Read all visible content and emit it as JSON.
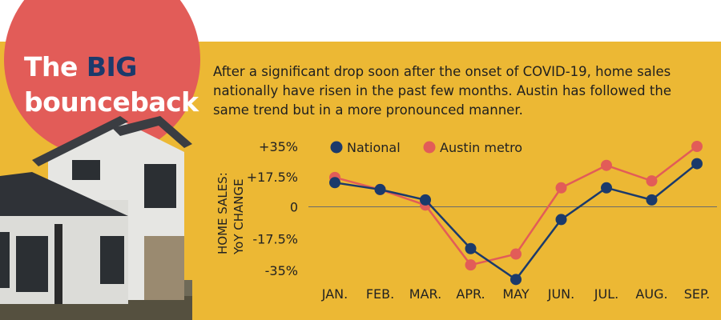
{
  "header": {
    "title_part1": "The ",
    "title_big": "BIG",
    "title_part2": "bounceback",
    "intro": "After a significant drop soon after the onset of COVID-19, home sales nationally have risen in the past few months. Austin has followed the same trend but in a more pronounced manner."
  },
  "colors": {
    "background": "#ecb834",
    "circle": "#e25c58",
    "national": "#1b3a6b",
    "austin": "#e25c58"
  },
  "chart_data": {
    "type": "line",
    "categories": [
      "JAN.",
      "FEB.",
      "MAR.",
      "APR.",
      "MAY",
      "JUN.",
      "JUL.",
      "AUG.",
      "SEP."
    ],
    "series": [
      {
        "name": "National",
        "values": [
          14,
          10,
          4,
          -23,
          -40,
          -7,
          11,
          4,
          25
        ]
      },
      {
        "name": "Austin metro",
        "values": [
          17,
          10,
          1,
          -32,
          -26,
          11,
          24,
          15,
          35
        ]
      }
    ],
    "ylabel_line1": "HOME SALES:",
    "ylabel_line2": "YoY CHANGE",
    "yticks": [
      35,
      17.5,
      0,
      -17.5,
      -35
    ],
    "ytick_labels": [
      "+35%",
      "+17.5%",
      "0",
      "-17.5%",
      "-35%"
    ],
    "ylim": [
      -40,
      40
    ],
    "zero_line": true,
    "legend_position": "top-left"
  }
}
